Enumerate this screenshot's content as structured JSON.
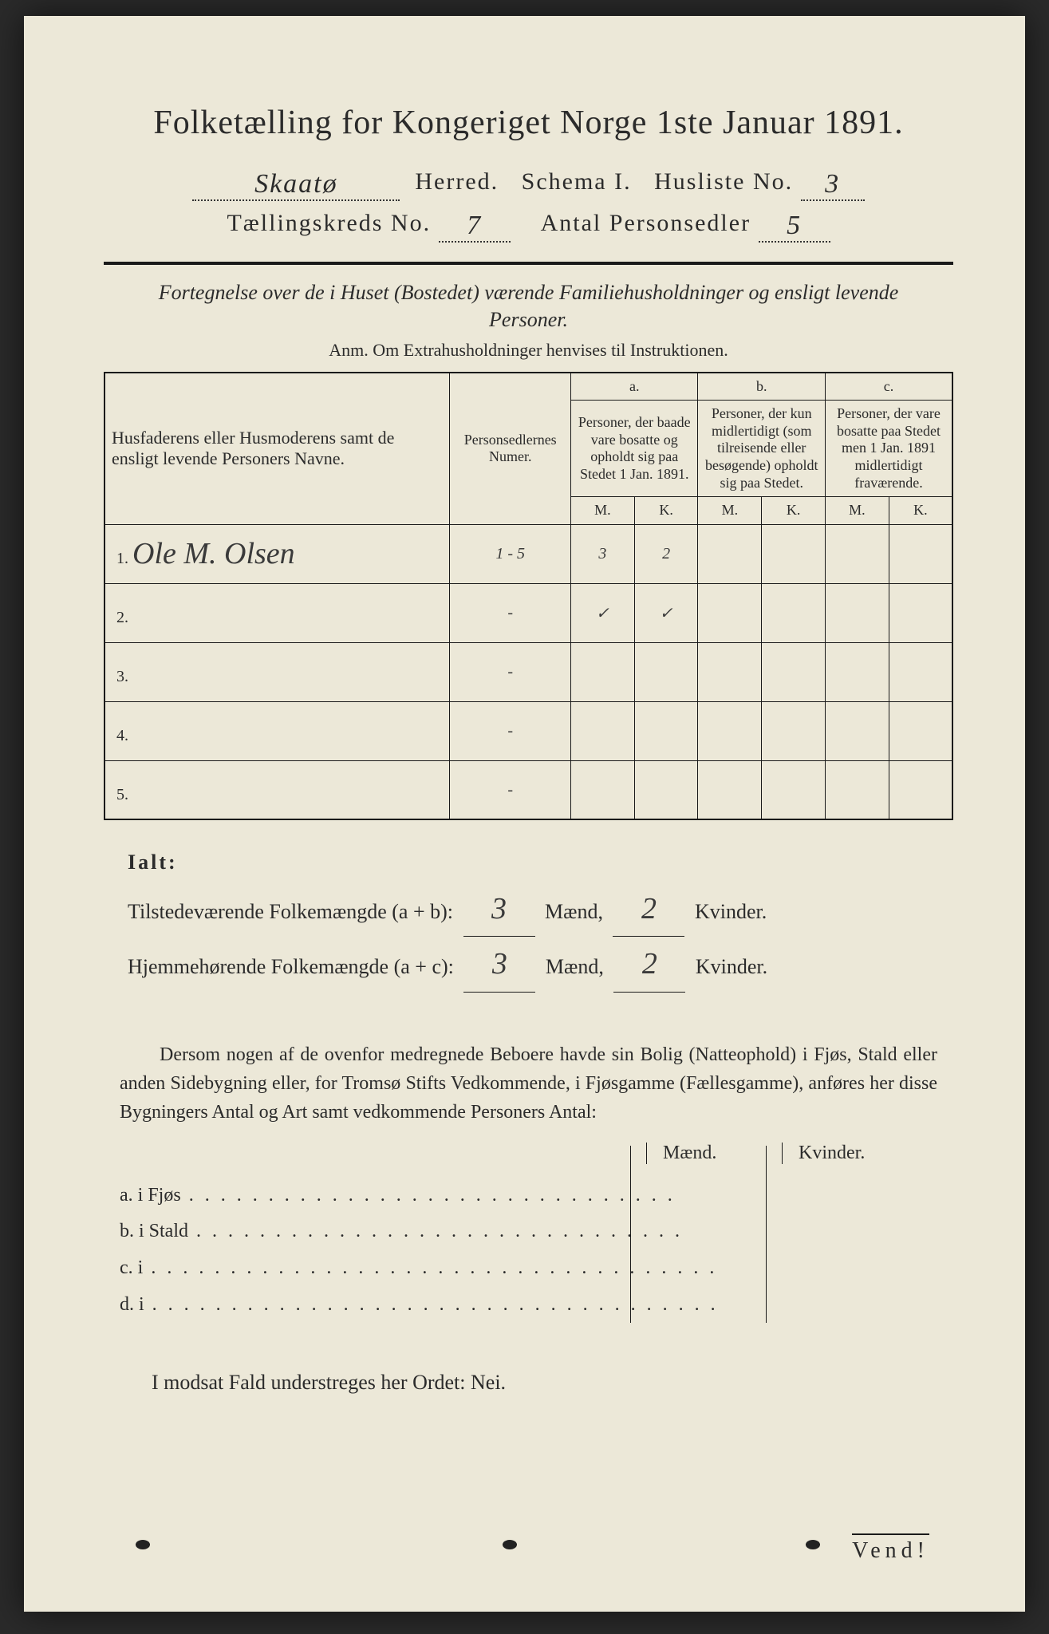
{
  "title": "Folketælling for Kongeriget Norge 1ste Januar 1891.",
  "header": {
    "herred_hw": "Skaatø",
    "herred_label": "Herred.",
    "schema_label": "Schema I.",
    "husliste_label": "Husliste No.",
    "husliste_no_hw": "3",
    "kreds_label": "Tællingskreds No.",
    "kreds_no_hw": "7",
    "antal_label": "Antal Personsedler",
    "antal_hw": "5"
  },
  "subtitle": "Fortegnelse over de i Huset (Bostedet) værende Familiehusholdninger og ensligt levende Personer.",
  "anm": "Anm. Om Extrahusholdninger henvises til Instruktionen.",
  "table": {
    "col_name": "Husfaderens eller Husmoderens samt de ensligt levende Personers Navne.",
    "col_num": "Personsedlernes Numer.",
    "col_a_label": "a.",
    "col_a": "Personer, der baade vare bosatte og opholdt sig paa Stedet 1 Jan. 1891.",
    "col_b_label": "b.",
    "col_b": "Personer, der kun midlertidigt (som tilreisende eller besøgende) opholdt sig paa Stedet.",
    "col_c_label": "c.",
    "col_c": "Personer, der vare bosatte paa Stedet men 1 Jan. 1891 midlertidigt fraværende.",
    "M": "M.",
    "K": "K.",
    "rows": [
      {
        "n": "1.",
        "name_hw": "Ole M. Olsen",
        "num_hw": "1 - 5",
        "aM": "3",
        "aK": "2",
        "bM": "",
        "bK": "",
        "cM": "",
        "cK": ""
      },
      {
        "n": "2.",
        "name_hw": "",
        "num_hw": "-",
        "aM": "✓",
        "aK": "✓",
        "bM": "",
        "bK": "",
        "cM": "",
        "cK": ""
      },
      {
        "n": "3.",
        "name_hw": "",
        "num_hw": "-",
        "aM": "",
        "aK": "",
        "bM": "",
        "bK": "",
        "cM": "",
        "cK": ""
      },
      {
        "n": "4.",
        "name_hw": "",
        "num_hw": "-",
        "aM": "",
        "aK": "",
        "bM": "",
        "bK": "",
        "cM": "",
        "cK": ""
      },
      {
        "n": "5.",
        "name_hw": "",
        "num_hw": "-",
        "aM": "",
        "aK": "",
        "bM": "",
        "bK": "",
        "cM": "",
        "cK": ""
      }
    ]
  },
  "ialt": {
    "label": "Ialt:",
    "line1_a": "Tilstedeværende Folkemængde (a + b):",
    "line2_a": "Hjemmehørende Folkemængde (a + c):",
    "maend": "Mænd,",
    "kvinder": "Kvinder.",
    "t_m_hw": "3",
    "t_k_hw": "2",
    "h_m_hw": "3",
    "h_k_hw": "2"
  },
  "para": "Dersom nogen af de ovenfor medregnede Beboere havde sin Bolig (Natteophold) i Fjøs, Stald eller anden Sidebygning eller, for Tromsø Stifts Vedkommende, i Fjøsgamme (Fællesgamme), anføres her disse Bygningers Antal og Art samt vedkommende Personers Antal:",
  "mk": {
    "maend": "Mænd.",
    "kvinder": "Kvinder."
  },
  "sublist": {
    "a": "a.  i      Fjøs",
    "b": "b.  i      Stald",
    "c": "c.  i",
    "d": "d.  i"
  },
  "nei": "I modsat Fald understreges her Ordet:  Nei.",
  "vend": "Vend!",
  "colors": {
    "paper": "#ece8d8",
    "ink": "#2b2b2b",
    "background": "#2a2a2a"
  }
}
